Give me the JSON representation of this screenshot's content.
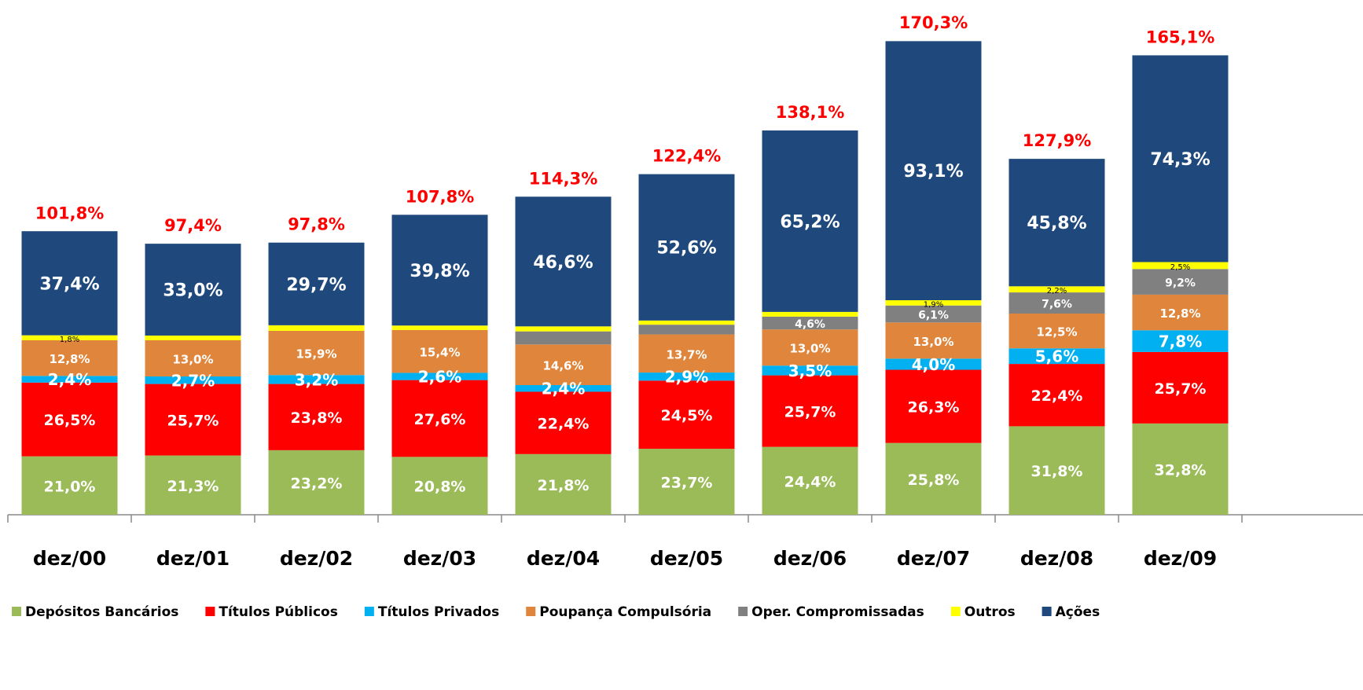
{
  "chart_data": {
    "type": "stacked_bar",
    "categories": [
      "dez/00",
      "dez/01",
      "dez/02",
      "dez/03",
      "dez/04",
      "dez/05",
      "dez/06",
      "dez/07",
      "dez/08",
      "dez/09"
    ],
    "series": [
      {
        "name": "Depósitos Bancários",
        "color": "#9BBB59",
        "values": [
          21.0,
          21.3,
          23.2,
          20.8,
          21.8,
          23.7,
          24.4,
          25.8,
          31.8,
          32.8
        ],
        "value_labels": [
          "21,0%",
          "21,3%",
          "23,2%",
          "20,8%",
          "21,8%",
          "23,7%",
          "24,4%",
          "25,8%",
          "31,8%",
          "32,8%"
        ]
      },
      {
        "name": "Títulos Públicos",
        "color": "#FF0000",
        "values": [
          26.5,
          25.7,
          23.8,
          27.6,
          22.4,
          24.5,
          25.7,
          26.3,
          22.4,
          25.7
        ],
        "value_labels": [
          "26,5%",
          "25,7%",
          "23,8%",
          "27,6%",
          "22,4%",
          "24,5%",
          "25,7%",
          "26,3%",
          "22,4%",
          "25,7%"
        ]
      },
      {
        "name": "Títulos Privados",
        "color": "#00B0F0",
        "values": [
          2.4,
          2.7,
          3.2,
          2.6,
          2.4,
          2.9,
          3.5,
          4.0,
          5.6,
          7.8
        ],
        "value_labels": [
          "2,4%",
          "2,7%",
          "3,2%",
          "2,6%",
          "2,4%",
          "2,9%",
          "3,5%",
          "4,0%",
          "5,6%",
          "7,8%"
        ]
      },
      {
        "name": "Poupança Compulsória",
        "color": "#E0863C",
        "values": [
          12.8,
          13.0,
          15.9,
          15.4,
          14.6,
          13.7,
          13.0,
          13.0,
          12.5,
          12.8
        ],
        "value_labels": [
          "12,8%",
          "13,0%",
          "15,9%",
          "15,4%",
          "14,6%",
          "13,7%",
          "13,0%",
          "13,0%",
          "12,5%",
          "12,8%"
        ]
      },
      {
        "name": "Oper. Compromissadas",
        "color": "#808080",
        "values": [
          null,
          null,
          null,
          null,
          4.7,
          3.5,
          4.6,
          6.1,
          7.6,
          9.2
        ],
        "value_labels": [
          null,
          null,
          null,
          null,
          null,
          null,
          "4,6%",
          "6,1%",
          "7,6%",
          "9,2%"
        ]
      },
      {
        "name": "Outros",
        "color": "#FFFF00",
        "values": [
          1.8,
          1.7,
          2.0,
          1.6,
          1.8,
          1.5,
          1.7,
          1.9,
          2.2,
          2.5
        ],
        "value_labels": [
          "1,8%",
          null,
          null,
          null,
          null,
          null,
          null,
          "1,9%",
          "2,2%",
          "2,5%"
        ]
      },
      {
        "name": "Ações",
        "color": "#1F497D",
        "values": [
          37.4,
          33.0,
          29.7,
          39.8,
          46.6,
          52.6,
          65.2,
          93.1,
          45.8,
          74.3
        ],
        "value_labels": [
          "37,4%",
          "33,0%",
          "29,7%",
          "39,8%",
          "46,6%",
          "52,6%",
          "65,2%",
          "93,1%",
          "45,8%",
          "74,3%"
        ]
      }
    ],
    "totals": [
      101.8,
      97.4,
      97.8,
      107.8,
      114.3,
      122.4,
      138.1,
      170.3,
      127.9,
      165.1
    ],
    "total_labels": [
      "101,8%",
      "97,4%",
      "97,8%",
      "107,8%",
      "114,3%",
      "122,4%",
      "138,1%",
      "170,3%",
      "127,9%",
      "165,1%"
    ]
  }
}
